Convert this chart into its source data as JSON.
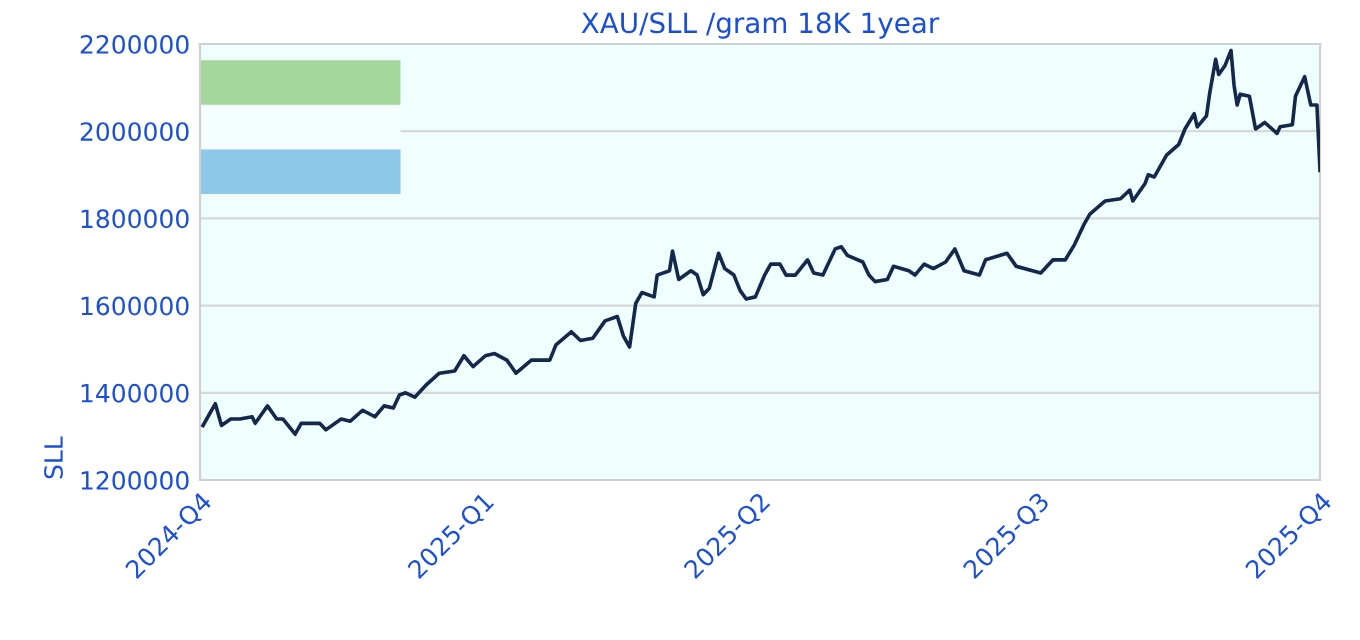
{
  "chart_data": {
    "type": "line",
    "title": "XAU/SLL /gram 18K 1year",
    "ylabel": "SLL",
    "x": [
      "2024-10-02",
      "2024-10-06",
      "2024-10-08",
      "2024-10-11",
      "2024-10-14",
      "2024-10-18",
      "2024-10-19",
      "2024-10-23",
      "2024-10-26",
      "2024-10-28",
      "2024-11-01",
      "2024-11-03",
      "2024-11-09",
      "2024-11-11",
      "2024-11-16",
      "2024-11-19",
      "2024-11-23",
      "2024-11-27",
      "2024-11-30",
      "2024-12-03",
      "2024-12-05",
      "2024-12-07",
      "2024-12-10",
      "2024-12-14",
      "2024-12-18",
      "2024-12-23",
      "2024-12-26",
      "2024-12-29",
      "2025-01-02",
      "2025-01-05",
      "2025-01-09",
      "2025-01-12",
      "2025-01-17",
      "2025-01-23",
      "2025-01-25",
      "2025-01-30",
      "2025-02-02",
      "2025-02-06",
      "2025-02-10",
      "2025-02-14",
      "2025-02-16",
      "2025-02-18",
      "2025-02-20",
      "2025-02-22",
      "2025-02-26",
      "2025-02-27",
      "2025-03-03",
      "2025-03-04",
      "2025-03-06",
      "2025-03-10",
      "2025-03-12",
      "2025-03-14",
      "2025-03-16",
      "2025-03-19",
      "2025-03-21",
      "2025-03-24",
      "2025-03-26",
      "2025-03-28",
      "2025-03-31",
      "2025-04-03",
      "2025-04-05",
      "2025-04-08",
      "2025-04-10",
      "2025-04-13",
      "2025-04-17",
      "2025-04-19",
      "2025-04-22",
      "2025-04-26",
      "2025-04-28",
      "2025-04-30",
      "2025-05-05",
      "2025-05-07",
      "2025-05-09",
      "2025-05-13",
      "2025-05-15",
      "2025-05-20",
      "2025-05-22",
      "2025-05-25",
      "2025-05-28",
      "2025-06-01",
      "2025-06-04",
      "2025-06-07",
      "2025-06-12",
      "2025-06-14",
      "2025-06-21",
      "2025-06-24",
      "2025-07-02",
      "2025-07-06",
      "2025-07-10",
      "2025-07-13",
      "2025-07-16",
      "2025-07-18",
      "2025-07-23",
      "2025-07-28",
      "2025-07-31",
      "2025-08-01",
      "2025-08-05",
      "2025-08-06",
      "2025-08-08",
      "2025-08-12",
      "2025-08-16",
      "2025-08-18",
      "2025-08-21",
      "2025-08-22",
      "2025-08-25",
      "2025-08-26",
      "2025-08-28",
      "2025-08-29",
      "2025-08-31",
      "2025-09-02",
      "2025-09-03",
      "2025-09-04",
      "2025-09-05",
      "2025-09-08",
      "2025-09-10",
      "2025-09-13",
      "2025-09-17",
      "2025-09-18",
      "2025-09-22",
      "2025-09-23",
      "2025-09-26",
      "2025-09-28",
      "2025-09-30",
      "2025-10-01"
    ],
    "series": [
      {
        "color": "#14284b",
        "values": [
          1325000,
          1375000,
          1325000,
          1340000,
          1340000,
          1345000,
          1330000,
          1370000,
          1340000,
          1340000,
          1305000,
          1330000,
          1330000,
          1315000,
          1340000,
          1335000,
          1360000,
          1345000,
          1370000,
          1365000,
          1395000,
          1400000,
          1390000,
          1420000,
          1445000,
          1450000,
          1485000,
          1460000,
          1485000,
          1490000,
          1475000,
          1445000,
          1475000,
          1475000,
          1510000,
          1540000,
          1520000,
          1525000,
          1565000,
          1575000,
          1530000,
          1505000,
          1605000,
          1630000,
          1620000,
          1670000,
          1680000,
          1725000,
          1660000,
          1680000,
          1670000,
          1625000,
          1640000,
          1720000,
          1685000,
          1670000,
          1635000,
          1615000,
          1620000,
          1670000,
          1695000,
          1695000,
          1670000,
          1670000,
          1705000,
          1675000,
          1670000,
          1730000,
          1735000,
          1715000,
          1700000,
          1670000,
          1655000,
          1660000,
          1690000,
          1680000,
          1670000,
          1695000,
          1685000,
          1700000,
          1730000,
          1680000,
          1670000,
          1705000,
          1720000,
          1690000,
          1675000,
          1705000,
          1705000,
          1740000,
          1785000,
          1810000,
          1840000,
          1845000,
          1865000,
          1840000,
          1880000,
          1900000,
          1895000,
          1945000,
          1970000,
          2005000,
          2040000,
          2010000,
          2035000,
          2085000,
          2165000,
          2130000,
          2150000,
          2185000,
          2105000,
          2060000,
          2085000,
          2080000,
          2005000,
          2020000,
          1995000,
          2010000,
          2015000,
          2080000,
          2125000,
          2060000,
          2060000,
          1910000
        ]
      }
    ],
    "xlim": [
      "2024-10-01",
      "2025-10-01"
    ],
    "xticks": [
      {
        "value": "2024-10-01",
        "label": "2024-Q4"
      },
      {
        "value": "2025-01-01",
        "label": "2025-Q1"
      },
      {
        "value": "2025-04-01",
        "label": "2025-Q2"
      },
      {
        "value": "2025-07-01",
        "label": "2025-Q3"
      },
      {
        "value": "2025-10-01",
        "label": "2025-Q4"
      }
    ],
    "ylim": [
      1200000,
      2200000
    ],
    "yticks": [
      1200000,
      1400000,
      1600000,
      1800000,
      2000000,
      2200000
    ],
    "grid": "y",
    "legend": false,
    "marker": "none",
    "line_style": "solid"
  }
}
